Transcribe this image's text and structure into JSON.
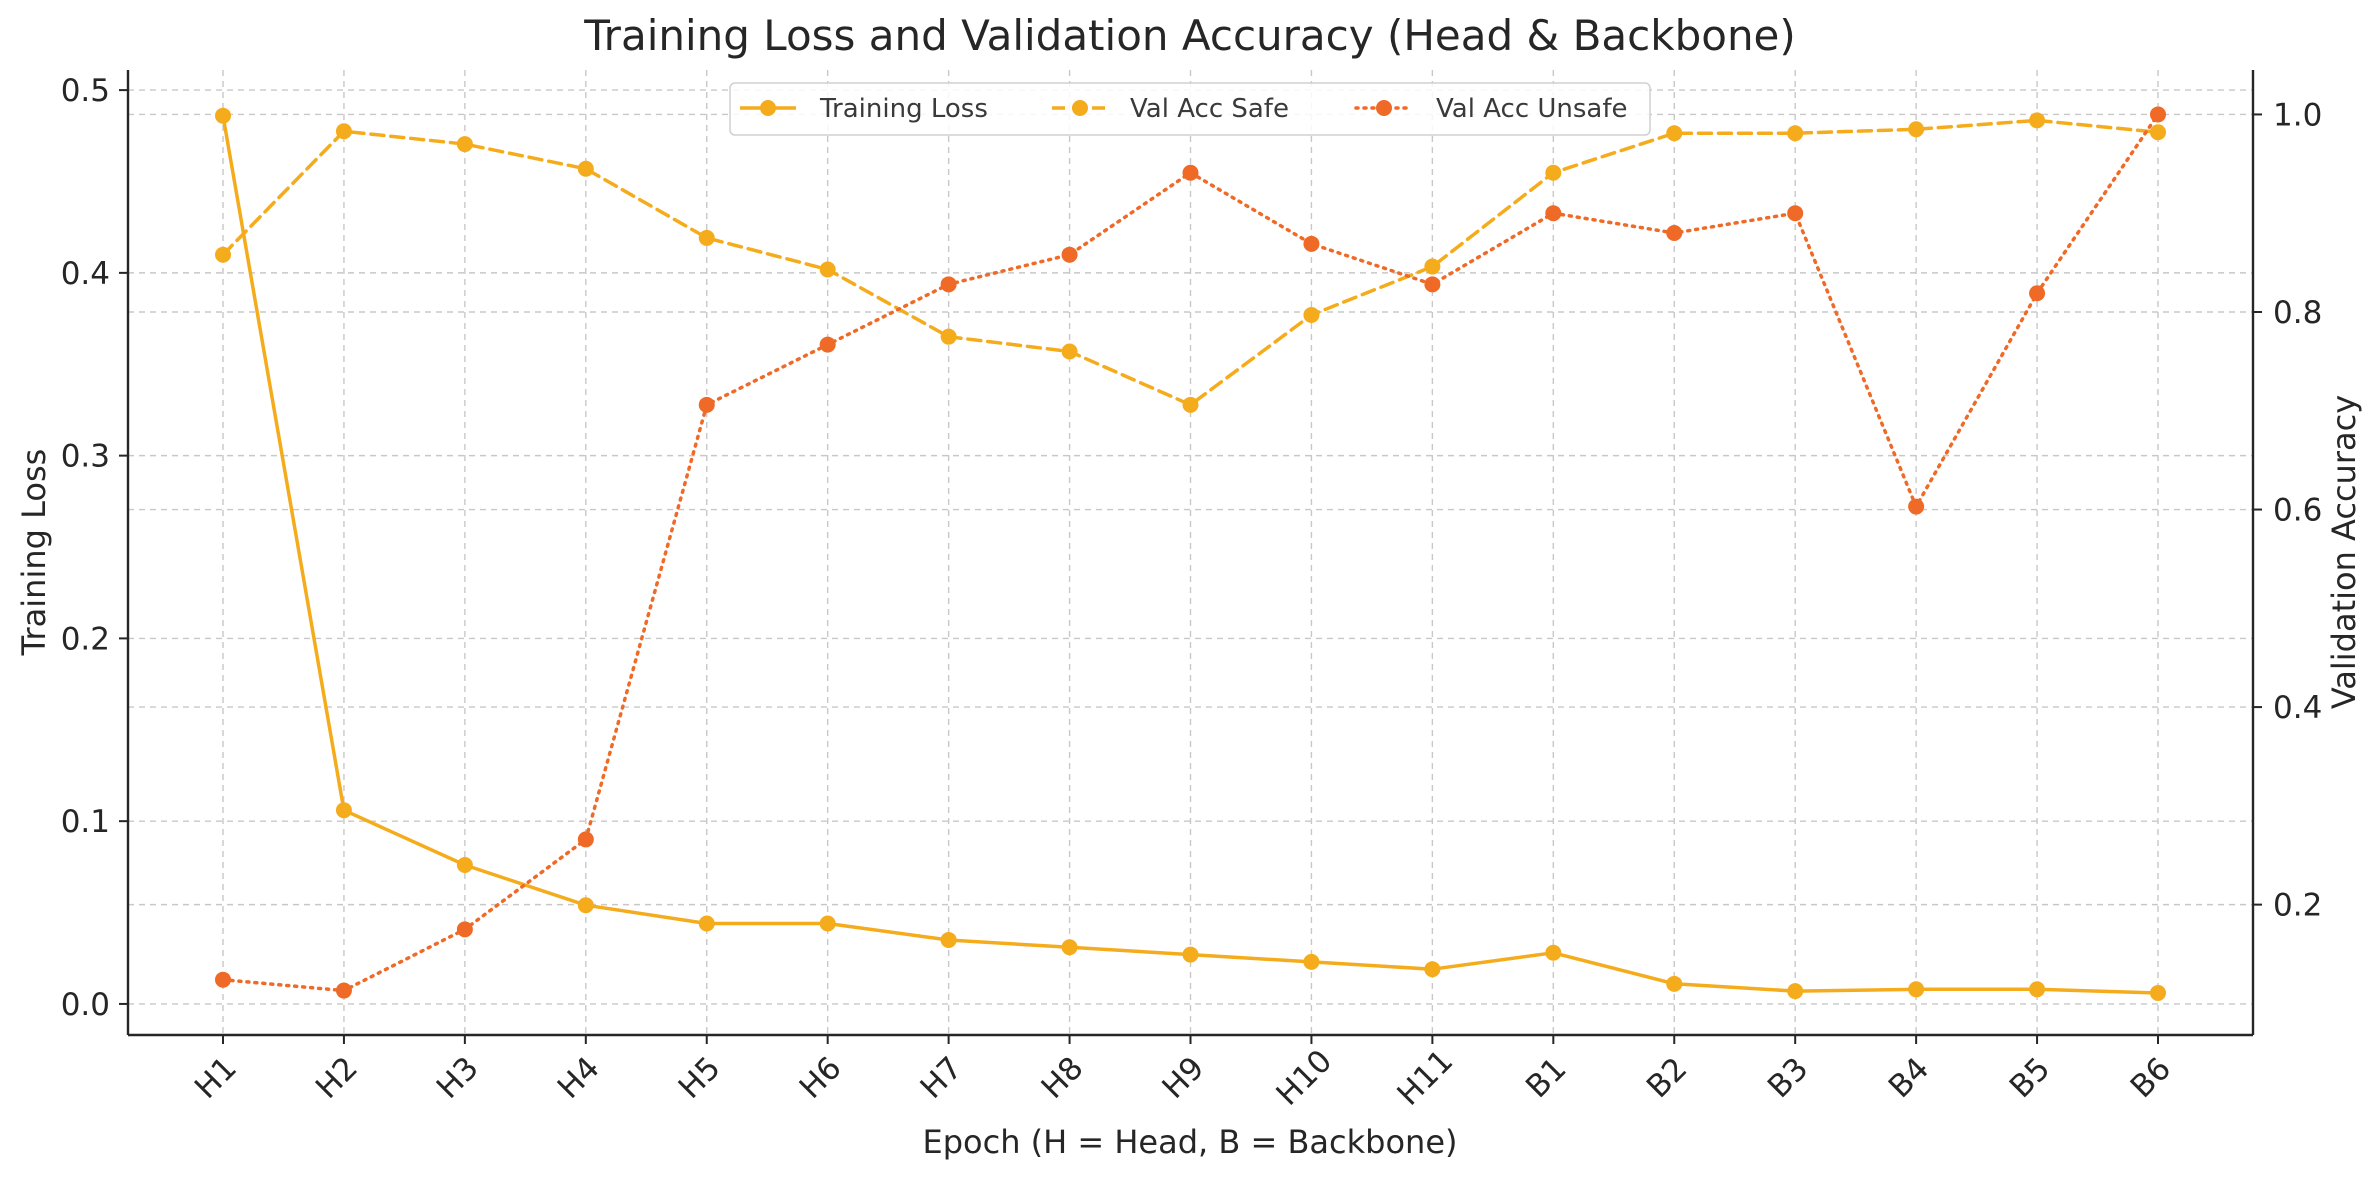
{
  "chart_data": {
    "type": "line",
    "title": "Training Loss and Validation Accuracy (Head & Backbone)",
    "xlabel": "Epoch (H = Head, B = Backbone)",
    "ylabel_left": "Training Loss",
    "ylabel_right": "Validation Accuracy",
    "categories": [
      "H1",
      "H2",
      "H3",
      "H4",
      "H5",
      "H6",
      "H7",
      "H8",
      "H9",
      "H10",
      "H11",
      "B1",
      "B2",
      "B3",
      "B4",
      "B5",
      "B6"
    ],
    "ylim_left": [
      -0.017,
      0.511
    ],
    "ylim_right": [
      0.068,
      1.045
    ],
    "yticks_left": [
      "0.0",
      "0.1",
      "0.2",
      "0.3",
      "0.4",
      "0.5"
    ],
    "yticks_right": [
      "0.2",
      "0.4",
      "0.6",
      "0.8",
      "1.0"
    ],
    "grid": true,
    "legend_position": "upper center",
    "series": [
      {
        "name": "Training Loss",
        "axis": "left",
        "color": "#f5ac1c",
        "linestyle": "solid",
        "values": [
          0.486,
          0.106,
          0.076,
          0.054,
          0.044,
          0.044,
          0.035,
          0.031,
          0.027,
          0.023,
          0.019,
          0.028,
          0.011,
          0.007,
          0.008,
          0.008,
          0.006
        ]
      },
      {
        "name": "Val Acc Safe",
        "axis": "right",
        "color": "#f5ac1c",
        "linestyle": "dashed",
        "values": [
          0.858,
          0.983,
          0.97,
          0.945,
          0.875,
          0.843,
          0.775,
          0.76,
          0.706,
          0.797,
          0.846,
          0.941,
          0.981,
          0.981,
          0.985,
          0.994,
          0.982
        ]
      },
      {
        "name": "Val Acc Unsafe",
        "axis": "right",
        "color": "#f06a27",
        "linestyle": "dotted",
        "values": [
          0.124,
          0.113,
          0.175,
          0.266,
          0.706,
          0.767,
          0.828,
          0.858,
          0.941,
          0.869,
          0.828,
          0.9,
          0.88,
          0.9,
          0.603,
          0.819,
          1.0
        ]
      }
    ]
  }
}
